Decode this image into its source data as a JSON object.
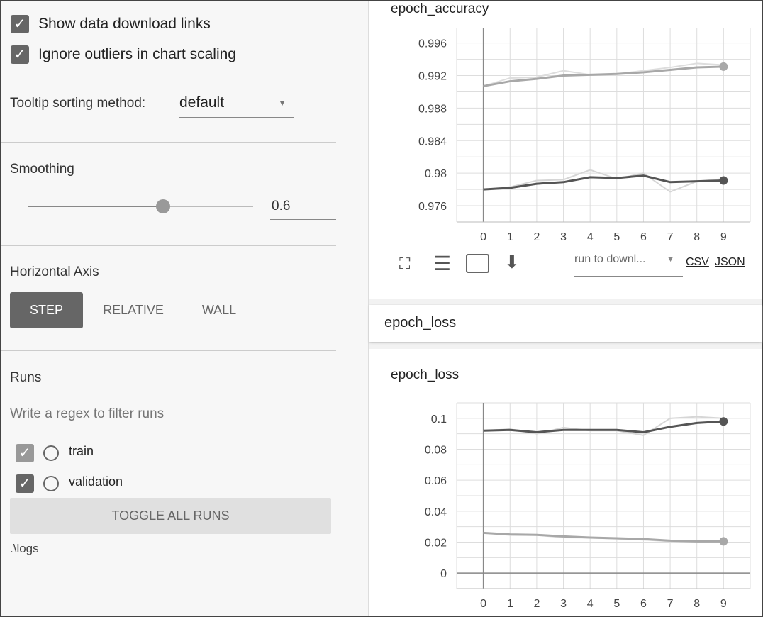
{
  "options": {
    "show_download_links": {
      "label": "Show data download links",
      "checked": true
    },
    "ignore_outliers": {
      "label": "Ignore outliers in chart scaling",
      "checked": true
    },
    "tooltip_sorting": {
      "label": "Tooltip sorting method:",
      "value": "default"
    }
  },
  "smoothing": {
    "label": "Smoothing",
    "value": "0.6",
    "fraction": 0.6
  },
  "horizontal_axis": {
    "label": "Horizontal Axis",
    "options": [
      "STEP",
      "RELATIVE",
      "WALL"
    ],
    "selected": "STEP"
  },
  "runs": {
    "label": "Runs",
    "filter_placeholder": "Write a regex to filter runs",
    "items": [
      {
        "name": "train",
        "checked": true,
        "color": "#999999"
      },
      {
        "name": "validation",
        "checked": true,
        "color": "#555555"
      }
    ],
    "toggle_all": "TOGGLE ALL RUNS",
    "log_dir": ".\\logs"
  },
  "icons": [
    "fullscreen-icon",
    "lines-icon",
    "fit-domain-icon",
    "download-icon"
  ],
  "download": {
    "placeholder": "run to downl...",
    "csv": "CSV",
    "json": "JSON"
  },
  "group_title": "epoch_loss",
  "chart_data": [
    {
      "type": "line",
      "title": "epoch_accuracy",
      "x": [
        0,
        1,
        2,
        3,
        4,
        5,
        6,
        7,
        8,
        9
      ],
      "xlim": [
        -1,
        10
      ],
      "ylim": [
        0.974,
        0.9978
      ],
      "yticks": [
        "0.996",
        "0.992",
        "0.988",
        "0.984",
        "0.98",
        "0.976"
      ],
      "ytick_values": [
        0.996,
        0.992,
        0.988,
        0.984,
        0.98,
        0.976
      ],
      "grid": true,
      "series": [
        {
          "name": "train",
          "color": "#a8a8a8",
          "raw_color": "#dddddd",
          "values": [
            0.9907,
            0.9913,
            0.9916,
            0.992,
            0.9921,
            0.9922,
            0.9924,
            0.9927,
            0.993,
            0.9931
          ],
          "raw": [
            0.9907,
            0.9917,
            0.9918,
            0.9926,
            0.9921,
            0.9922,
            0.9926,
            0.993,
            0.9935,
            0.9933
          ]
        },
        {
          "name": "validation",
          "color": "#555555",
          "raw_color": "#d6d6d6",
          "values": [
            0.978,
            0.9782,
            0.9787,
            0.9789,
            0.9795,
            0.9794,
            0.9797,
            0.9789,
            0.979,
            0.9791
          ],
          "raw": [
            0.978,
            0.9783,
            0.9791,
            0.9792,
            0.9804,
            0.9793,
            0.98,
            0.9777,
            0.979,
            0.9793
          ]
        }
      ]
    },
    {
      "type": "line",
      "title": "epoch_loss",
      "x": [
        0,
        1,
        2,
        3,
        4,
        5,
        6,
        7,
        8,
        9
      ],
      "xlim": [
        -1,
        10
      ],
      "ylim": [
        -0.01,
        0.11
      ],
      "yticks": [
        "0.1",
        "0.08",
        "0.06",
        "0.04",
        "0.02",
        "0"
      ],
      "ytick_values": [
        0.1,
        0.08,
        0.06,
        0.04,
        0.02,
        0
      ],
      "grid": true,
      "series": [
        {
          "name": "validation",
          "color": "#555555",
          "raw_color": "#d6d6d6",
          "values": [
            0.092,
            0.0925,
            0.091,
            0.0925,
            0.0925,
            0.0925,
            0.091,
            0.0945,
            0.097,
            0.098
          ],
          "raw": [
            0.092,
            0.093,
            0.09,
            0.094,
            0.092,
            0.092,
            0.089,
            0.1,
            0.101,
            0.1
          ]
        },
        {
          "name": "train",
          "color": "#a8a8a8",
          "raw_color": "#dddddd",
          "values": [
            0.026,
            0.025,
            0.0247,
            0.0237,
            0.023,
            0.0225,
            0.022,
            0.021,
            0.0205,
            0.0205
          ],
          "raw": [
            0.026,
            0.0245,
            0.0245,
            0.023,
            0.0228,
            0.0222,
            0.0215,
            0.0205,
            0.02,
            0.0205
          ]
        }
      ]
    }
  ]
}
